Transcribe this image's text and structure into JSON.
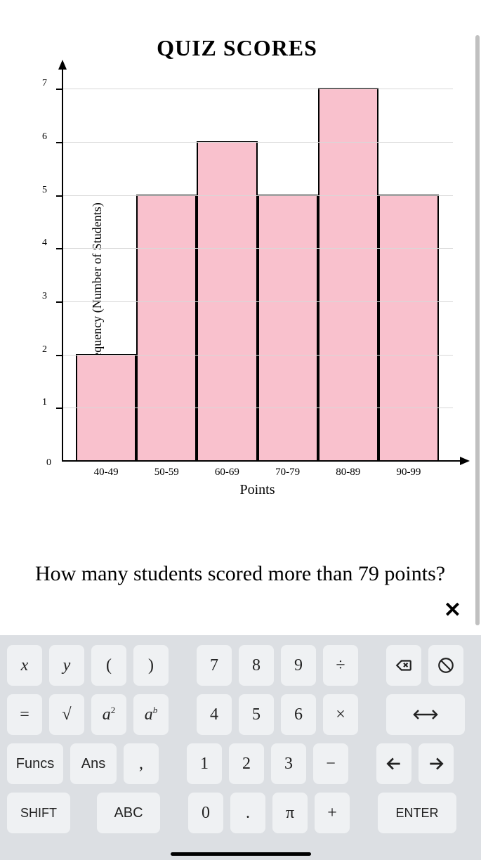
{
  "chart": {
    "title": "QUIZ SCORES",
    "type": "histogram",
    "ylabel": "Frequency (Number of Students)",
    "xlabel": "Points",
    "categories": [
      "40-49",
      "50-59",
      "60-69",
      "70-79",
      "80-89",
      "90-99"
    ],
    "values": [
      2,
      5,
      6,
      5,
      7,
      5
    ],
    "ymax": 7.4,
    "yticks": [
      0,
      1,
      2,
      3,
      4,
      5,
      6,
      7
    ],
    "bar_color": "#f9c1cd",
    "bar_border": "#000000",
    "grid_color": "#d8d8d8",
    "background": "#ffffff",
    "title_fontsize": 32,
    "label_fontsize": 18,
    "tick_fontsize": 14
  },
  "question": "How many students scored more than 79 points?",
  "keyboard": {
    "row1": {
      "x": "x",
      "y": "y",
      "lparen": "(",
      "rparen": ")",
      "n7": "7",
      "n8": "8",
      "n9": "9",
      "div": "÷"
    },
    "row2": {
      "eq": "=",
      "sqrt": "√",
      "sq_base": "a",
      "sq_exp": "2",
      "pow_base": "a",
      "pow_exp": "b",
      "n4": "4",
      "n5": "5",
      "n6": "6",
      "mul": "×"
    },
    "row3": {
      "funcs": "Funcs",
      "ans": "Ans",
      "comma": ",",
      "n1": "1",
      "n2": "2",
      "n3": "3",
      "minus": "−"
    },
    "row4": {
      "shift": "SHIFT",
      "abc": "ABC",
      "n0": "0",
      "dot": ".",
      "pi": "π",
      "plus": "+",
      "enter": "ENTER"
    }
  },
  "close_label": "✕"
}
